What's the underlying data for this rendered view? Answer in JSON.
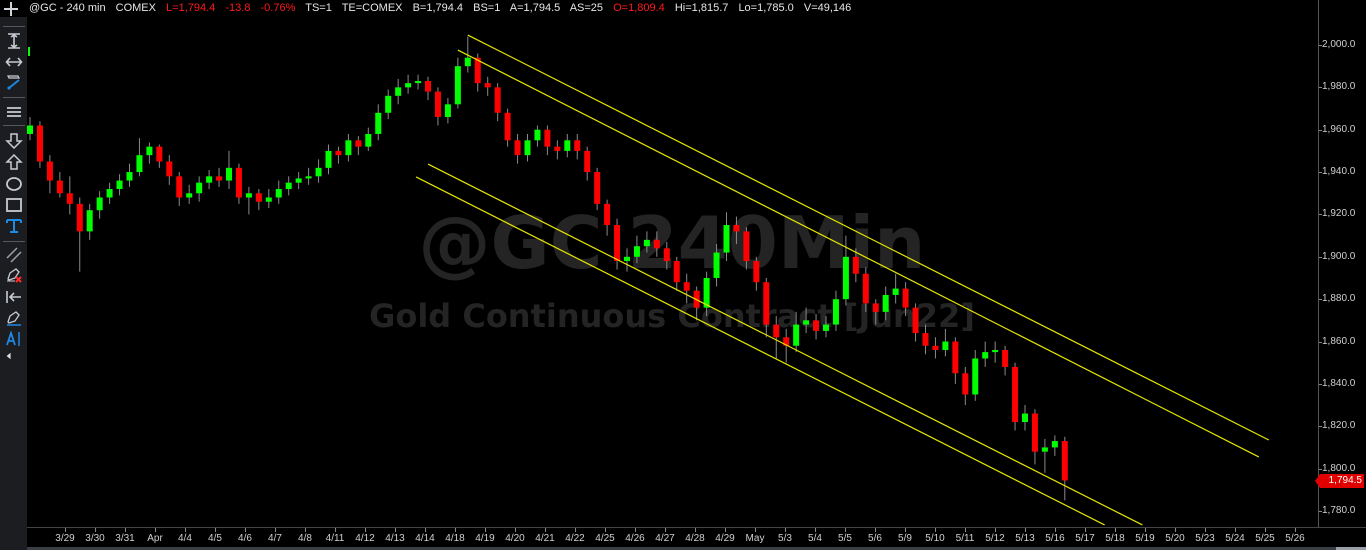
{
  "header": {
    "symbol": "@GC - 240 min",
    "exchange": "COMEX",
    "last": "L=1,794.4",
    "net_change": "-13.8",
    "pct_change": "-0.76%",
    "ts": "TS=1",
    "te": "TE=COMEX",
    "bid": "B=1,794.4",
    "bid_size": "BS=1",
    "ask": "A=1,794.5",
    "ask_size": "AS=25",
    "open": "O=1,809.4",
    "high": "Hi=1,815.7",
    "low": "Lo=1,785.0",
    "volume": "V=49,146"
  },
  "toolbar": {
    "icons": [
      "crosshair-icon",
      "vertical-resize-icon",
      "horizontal-resize-icon",
      "trendline-pencil-icon",
      "menu-lines-icon",
      "arrow-down-icon",
      "arrow-up-icon",
      "circle-icon",
      "rectangle-icon",
      "text-icon",
      "parallel-lines-icon",
      "remove-drawing-icon",
      "arrow-left-bar-icon",
      "pen-icon",
      "text-cursor-icon",
      "collapse-triangle-icon"
    ]
  },
  "watermark": {
    "title": "@GC 240Min",
    "subtitle": "Gold Continuous Contract [Jun22]"
  },
  "colors": {
    "up": "#00ff00",
    "down": "#ff0000",
    "wick": "#8a8a8a",
    "trendline": "#e6e600",
    "last_price_tag": "#e00000",
    "background": "#000000"
  },
  "chart_data": {
    "type": "candlestick",
    "ylim": [
      1772,
      2010
    ],
    "y_ticks": [
      "2,000.0",
      "1,980.0",
      "1,960.0",
      "1,940.0",
      "1,920.0",
      "1,900.0",
      "1,880.0",
      "1,860.0",
      "1,840.0",
      "1,820.0",
      "1,800.0",
      "1,780.0"
    ],
    "y_tick_values": [
      2000,
      1980,
      1960,
      1940,
      1920,
      1900,
      1880,
      1860,
      1840,
      1820,
      1800,
      1780
    ],
    "x_ticks": [
      "3/29",
      "3/30",
      "3/31",
      "Apr",
      "4/4",
      "4/5",
      "4/6",
      "4/7",
      "4/8",
      "4/11",
      "4/12",
      "4/13",
      "4/14",
      "4/18",
      "4/19",
      "4/20",
      "4/21",
      "4/22",
      "4/25",
      "4/26",
      "4/27",
      "4/28",
      "4/29",
      "May",
      "5/3",
      "5/4",
      "5/5",
      "5/6",
      "5/9",
      "5/10",
      "5/11",
      "5/12",
      "5/13",
      "5/16",
      "5/17",
      "5/18",
      "5/19",
      "5/20",
      "5/23",
      "5/24",
      "5/25",
      "5/26"
    ],
    "last_price_label": "1,794.5",
    "candles_ohlc": [
      [
        1958,
        1966,
        1955,
        1962
      ],
      [
        1962,
        1964,
        1942,
        1945
      ],
      [
        1945,
        1948,
        1930,
        1936
      ],
      [
        1936,
        1940,
        1928,
        1930
      ],
      [
        1930,
        1938,
        1920,
        1925
      ],
      [
        1925,
        1928,
        1893,
        1912
      ],
      [
        1912,
        1925,
        1908,
        1922
      ],
      [
        1922,
        1931,
        1918,
        1928
      ],
      [
        1928,
        1935,
        1925,
        1932
      ],
      [
        1932,
        1939,
        1929,
        1936
      ],
      [
        1936,
        1944,
        1933,
        1940
      ],
      [
        1940,
        1956,
        1938,
        1948
      ],
      [
        1948,
        1954,
        1944,
        1952
      ],
      [
        1952,
        1953,
        1942,
        1945
      ],
      [
        1945,
        1948,
        1934,
        1938
      ],
      [
        1938,
        1940,
        1924,
        1928
      ],
      [
        1928,
        1934,
        1925,
        1930
      ],
      [
        1930,
        1938,
        1926,
        1935
      ],
      [
        1935,
        1941,
        1932,
        1938
      ],
      [
        1938,
        1942,
        1933,
        1936
      ],
      [
        1936,
        1950,
        1932,
        1942
      ],
      [
        1942,
        1944,
        1925,
        1928
      ],
      [
        1928,
        1933,
        1920,
        1930
      ],
      [
        1930,
        1932,
        1922,
        1926
      ],
      [
        1926,
        1932,
        1923,
        1928
      ],
      [
        1928,
        1936,
        1925,
        1932
      ],
      [
        1932,
        1938,
        1929,
        1935
      ],
      [
        1935,
        1940,
        1932,
        1937
      ],
      [
        1937,
        1942,
        1934,
        1938
      ],
      [
        1938,
        1946,
        1935,
        1942
      ],
      [
        1942,
        1953,
        1939,
        1950
      ],
      [
        1950,
        1952,
        1944,
        1948
      ],
      [
        1948,
        1958,
        1945,
        1955
      ],
      [
        1955,
        1957,
        1948,
        1952
      ],
      [
        1952,
        1961,
        1950,
        1958
      ],
      [
        1958,
        1972,
        1955,
        1968
      ],
      [
        1968,
        1979,
        1965,
        1976
      ],
      [
        1976,
        1984,
        1972,
        1980
      ],
      [
        1980,
        1986,
        1977,
        1982
      ],
      [
        1982,
        1986,
        1979,
        1983
      ],
      [
        1983,
        1985,
        1974,
        1978
      ],
      [
        1978,
        1980,
        1962,
        1966
      ],
      [
        1966,
        1975,
        1963,
        1972
      ],
      [
        1972,
        1994,
        1970,
        1990
      ],
      [
        1990,
        2004,
        1987,
        1994
      ],
      [
        1994,
        1996,
        1978,
        1982
      ],
      [
        1982,
        1985,
        1976,
        1980
      ],
      [
        1980,
        1982,
        1964,
        1968
      ],
      [
        1968,
        1970,
        1952,
        1955
      ],
      [
        1955,
        1958,
        1944,
        1948
      ],
      [
        1948,
        1958,
        1945,
        1955
      ],
      [
        1955,
        1962,
        1952,
        1960
      ],
      [
        1960,
        1962,
        1948,
        1952
      ],
      [
        1952,
        1955,
        1946,
        1950
      ],
      [
        1950,
        1958,
        1947,
        1955
      ],
      [
        1955,
        1958,
        1946,
        1950
      ],
      [
        1950,
        1952,
        1936,
        1940
      ],
      [
        1940,
        1942,
        1922,
        1925
      ],
      [
        1925,
        1927,
        1910,
        1915
      ],
      [
        1915,
        1918,
        1894,
        1898
      ],
      [
        1898,
        1904,
        1893,
        1900
      ],
      [
        1900,
        1910,
        1897,
        1905
      ],
      [
        1905,
        1912,
        1902,
        1908
      ],
      [
        1908,
        1912,
        1900,
        1904
      ],
      [
        1904,
        1907,
        1894,
        1898
      ],
      [
        1898,
        1900,
        1884,
        1888
      ],
      [
        1888,
        1892,
        1878,
        1884
      ],
      [
        1884,
        1886,
        1870,
        1876
      ],
      [
        1876,
        1893,
        1872,
        1890
      ],
      [
        1890,
        1906,
        1886,
        1902
      ],
      [
        1902,
        1921,
        1898,
        1915
      ],
      [
        1915,
        1919,
        1906,
        1912
      ],
      [
        1912,
        1914,
        1894,
        1898
      ],
      [
        1898,
        1900,
        1884,
        1888
      ],
      [
        1888,
        1890,
        1862,
        1868
      ],
      [
        1868,
        1872,
        1852,
        1862
      ],
      [
        1862,
        1866,
        1850,
        1858
      ],
      [
        1858,
        1874,
        1855,
        1868
      ],
      [
        1868,
        1876,
        1864,
        1870
      ],
      [
        1870,
        1873,
        1861,
        1865
      ],
      [
        1865,
        1872,
        1862,
        1868
      ],
      [
        1868,
        1884,
        1865,
        1880
      ],
      [
        1880,
        1910,
        1877,
        1900
      ],
      [
        1900,
        1904,
        1888,
        1892
      ],
      [
        1892,
        1895,
        1874,
        1878
      ],
      [
        1878,
        1880,
        1868,
        1874
      ],
      [
        1874,
        1886,
        1870,
        1882
      ],
      [
        1882,
        1892,
        1878,
        1885
      ],
      [
        1885,
        1888,
        1872,
        1876
      ],
      [
        1876,
        1878,
        1860,
        1864
      ],
      [
        1864,
        1868,
        1854,
        1858
      ],
      [
        1858,
        1862,
        1852,
        1856
      ],
      [
        1856,
        1866,
        1853,
        1860
      ],
      [
        1860,
        1862,
        1840,
        1845
      ],
      [
        1845,
        1848,
        1830,
        1835
      ],
      [
        1835,
        1856,
        1832,
        1852
      ],
      [
        1852,
        1860,
        1848,
        1855
      ],
      [
        1855,
        1860,
        1850,
        1856
      ],
      [
        1856,
        1858,
        1844,
        1848
      ],
      [
        1848,
        1850,
        1818,
        1822
      ],
      [
        1822,
        1830,
        1818,
        1826
      ],
      [
        1826,
        1828,
        1802,
        1808
      ],
      [
        1808,
        1814,
        1798,
        1810
      ],
      [
        1810,
        1815.7,
        1806,
        1813
      ],
      [
        1813,
        1815,
        1785,
        1794.4
      ]
    ],
    "trendlines": [
      {
        "from": [
          44,
          2004.7
        ],
        "to": [
          124.5,
          1813.5
        ]
      },
      {
        "from": [
          43,
          1997.6
        ],
        "to": [
          123.5,
          1805.5
        ]
      },
      {
        "from": [
          40,
          1943.8
        ],
        "to": [
          111.8,
          1773.4
        ]
      },
      {
        "from": [
          38.8,
          1937.7
        ],
        "to": [
          108,
          1773.4
        ]
      }
    ]
  }
}
